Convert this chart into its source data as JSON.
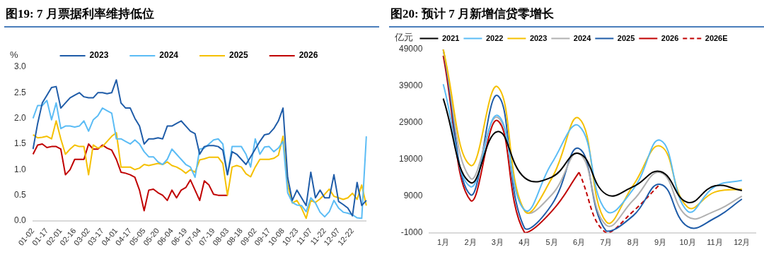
{
  "chart_data": [
    {
      "type": "line",
      "title": "图19: 7 月票据利率维持低位",
      "ylabel": "%",
      "categories": [
        "01-02",
        null,
        null,
        "01-17",
        null,
        null,
        "02-01",
        null,
        null,
        "02-16",
        null,
        null,
        "03-02",
        null,
        null,
        "03-17",
        null,
        null,
        "04-01",
        null,
        null,
        "04-17",
        null,
        null,
        "05-05",
        null,
        null,
        "05-20",
        null,
        null,
        "06-04",
        null,
        null,
        "06-19",
        null,
        null,
        "07-04",
        null,
        null,
        "07-19",
        null,
        null,
        "08-03",
        null,
        null,
        "08-18",
        null,
        null,
        "09-02",
        null,
        null,
        "09-17",
        null,
        null,
        "10-08",
        null,
        null,
        "10-23",
        null,
        null,
        "11-07",
        null,
        null,
        "11-22",
        null,
        null,
        "12-07",
        null,
        null,
        "12-22",
        null,
        null,
        null
      ],
      "series": [
        {
          "name": "2023",
          "color": "#1f5ca8",
          "values": [
            1.4,
            1.9,
            2.3,
            2.45,
            2.6,
            2.62,
            2.2,
            2.3,
            2.4,
            2.45,
            2.5,
            2.42,
            2.4,
            2.4,
            2.5,
            2.5,
            2.48,
            2.5,
            2.75,
            2.3,
            2.2,
            2.2,
            2.0,
            1.85,
            1.5,
            1.6,
            1.6,
            1.62,
            1.6,
            1.85,
            1.85,
            1.9,
            1.95,
            1.85,
            1.75,
            1.7,
            1.3,
            1.45,
            1.47,
            1.47,
            1.45,
            1.38,
            0.9,
            1.35,
            1.3,
            1.2,
            1.1,
            1.25,
            1.4,
            1.55,
            1.68,
            1.7,
            1.8,
            1.95,
            2.2,
            0.85,
            0.4,
            0.6,
            0.45,
            0.3,
            0.95,
            0.45,
            0.6,
            0.45,
            0.45,
            0.9,
            0.38,
            0.32,
            0.25,
            0.1,
            0.75,
            0.3,
            0.4
          ]
        },
        {
          "name": "2024",
          "color": "#5bbcf5",
          "values": [
            2.0,
            2.25,
            2.25,
            2.35,
            1.97,
            2.3,
            1.8,
            1.85,
            1.85,
            1.83,
            1.85,
            1.95,
            1.75,
            1.97,
            2.05,
            2.2,
            2.15,
            2.1,
            1.6,
            1.6,
            1.55,
            1.5,
            1.58,
            1.5,
            1.35,
            1.25,
            1.25,
            1.15,
            1.1,
            1.2,
            1.4,
            1.3,
            1.2,
            1.1,
            1.05,
            0.85,
            1.4,
            1.42,
            1.5,
            1.58,
            1.6,
            1.5,
            0.9,
            1.45,
            1.45,
            1.45,
            1.3,
            1.05,
            1.6,
            1.3,
            1.44,
            1.45,
            1.35,
            1.42,
            1.55,
            0.55,
            0.36,
            0.31,
            0.3,
            0.18,
            0.45,
            0.35,
            0.17,
            0.08,
            0.18,
            0.4,
            0.25,
            0.17,
            0.15,
            0.12,
            0.06,
            0.05,
            1.65
          ]
        },
        {
          "name": "2025",
          "color": "#f5c000",
          "values": [
            1.68,
            1.62,
            1.63,
            1.65,
            1.6,
            1.95,
            1.6,
            1.3,
            1.4,
            1.48,
            1.45,
            1.45,
            0.9,
            1.48,
            1.42,
            1.45,
            1.55,
            1.65,
            1.72,
            1.05,
            1.05,
            1.05,
            1.0,
            1.03,
            1.1,
            1.08,
            1.1,
            1.12,
            1.1,
            1.15,
            1.08,
            1.05,
            1.0,
            0.93,
            1.0,
            0.95,
            1.19,
            1.21,
            1.24,
            1.24,
            1.24,
            1.12,
            0.5,
            1.05,
            1.08,
            1.05,
            0.92,
            0.86,
            1.05,
            1.2,
            1.2,
            1.2,
            1.22,
            1.28,
            1.65,
            0.7,
            0.35,
            0.4,
            0.25,
            0.05,
            0.4,
            0.36,
            0.43,
            0.52,
            0.62,
            0.48,
            0.45,
            0.42,
            0.45,
            0.54,
            0.42,
            0.7,
            0.3
          ]
        },
        {
          "name": "2026",
          "color": "#c00000",
          "values": [
            1.3,
            1.48,
            1.5,
            1.43,
            1.45,
            1.45,
            1.4,
            0.9,
            1.0,
            1.2,
            1.2,
            1.2,
            1.5,
            1.4,
            1.4,
            1.48,
            1.42,
            1.38,
            1.2,
            0.95,
            0.93,
            0.9,
            0.85,
            0.6,
            0.2,
            0.6,
            0.62,
            0.55,
            0.5,
            0.4,
            0.6,
            0.45,
            0.6,
            0.65,
            0.8,
            0.6,
            0.4,
            0.78,
            0.7,
            0.52,
            0.5,
            0.5,
            0.5,
            null,
            null,
            null,
            null,
            null,
            null,
            null,
            null,
            null,
            null,
            null,
            null,
            null,
            null,
            null,
            null,
            null,
            null,
            null,
            null,
            null,
            null,
            null,
            null,
            null,
            null,
            null,
            null,
            null,
            null
          ]
        }
      ],
      "ylim": [
        0,
        3
      ],
      "yticks": [
        {
          "value": 0,
          "label": "0.0"
        },
        {
          "value": 0.5,
          "label": "0.5"
        },
        {
          "value": 1,
          "label": "1.0"
        },
        {
          "value": 1.5,
          "label": "1.5"
        },
        {
          "value": 2,
          "label": "2.0"
        },
        {
          "value": 2.5,
          "label": "2.5"
        },
        {
          "value": 3,
          "label": "3.0"
        }
      ],
      "legend": "top",
      "grid": false,
      "marker": "none",
      "line_style": "solid"
    },
    {
      "type": "line",
      "title": "图20: 预计 7 月新增信贷零增长",
      "ylabel": "亿元",
      "categories": [
        "1月",
        "2月",
        "3月",
        "4月",
        "5月",
        "6月",
        "7月",
        "8月",
        "9月",
        "10月",
        "11月",
        "12月"
      ],
      "series": [
        {
          "name": "2021",
          "color": "#000000",
          "values": [
            35600,
            12700,
            26600,
            14000,
            14200,
            20600,
            9500,
            11600,
            15700,
            7300,
            11800,
            10500
          ]
        },
        {
          "name": "2022",
          "color": "#5bbcf5",
          "values": [
            39500,
            11600,
            31000,
            5200,
            18000,
            28100,
            5000,
            10900,
            24200,
            4900,
            11600,
            13300
          ]
        },
        {
          "name": "2023",
          "color": "#f5c000",
          "values": [
            49000,
            17400,
            38800,
            5000,
            13900,
            30200,
            2000,
            12000,
            22600,
            6000,
            10100,
            10900
          ]
        },
        {
          "name": "2024",
          "color": "#b0b0b0",
          "values": [
            49000,
            13900,
            30500,
            5000,
            9400,
            20600,
            1100,
            7900,
            15400,
            3400,
            4900,
            9000
          ]
        },
        {
          "name": "2025",
          "color": "#1f5ca8",
          "values": [
            49000,
            9400,
            36400,
            200,
            6700,
            22000,
            -500,
            3700,
            12200,
            700,
            3000,
            8200
          ]
        },
        {
          "name": "2026",
          "color": "#c00000",
          "values": [
            47300,
            7900,
            29600,
            -1000,
            4900,
            15500,
            null,
            null,
            null,
            null,
            null,
            null
          ]
        },
        {
          "name": "2026E",
          "color": "#c00000",
          "line_style": "dashed",
          "values": [
            null,
            null,
            null,
            null,
            null,
            15500,
            -1000,
            4900,
            12400,
            null,
            null,
            null
          ]
        }
      ],
      "ylim": [
        -1000,
        49000
      ],
      "yticks": [
        -1000,
        9000,
        19000,
        29000,
        39000,
        49000
      ],
      "legend": "top",
      "grid": false,
      "marker": "none",
      "line_style": "solid"
    }
  ]
}
